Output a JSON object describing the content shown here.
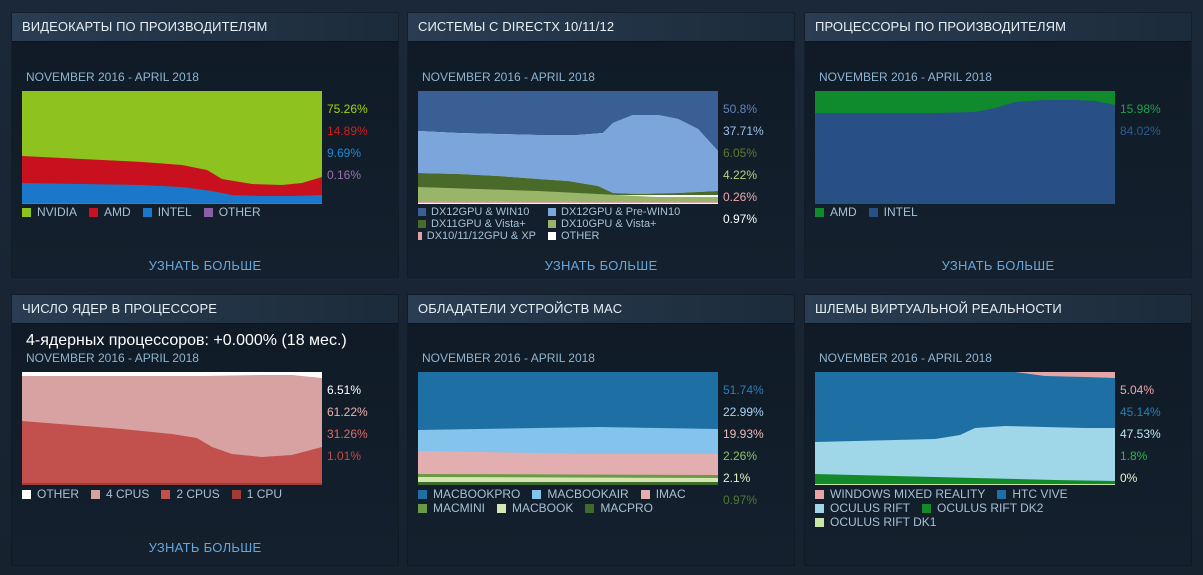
{
  "panels": {
    "gpu": {
      "title": "ВИДЕОКАРТЫ ПО ПРОИЗВОДИТЕЛЯМ",
      "range": "NOVEMBER 2016 - APRIL 2018",
      "values": [
        {
          "text": "75.26%",
          "color": "#a0d40c"
        },
        {
          "text": "14.89%",
          "color": "#d41c1c"
        },
        {
          "text": "9.69%",
          "color": "#1a8adb"
        },
        {
          "text": "0.16%",
          "color": "#9a72b0"
        }
      ],
      "legend": [
        {
          "label": "NVIDIA",
          "color": "#8dc21f"
        },
        {
          "label": "AMD",
          "color": "#c8101e"
        },
        {
          "label": "INTEL",
          "color": "#1a77c9"
        },
        {
          "label": "OTHER",
          "color": "#8a5fa6"
        }
      ],
      "more": "УЗНАТЬ БОЛЬШЕ"
    },
    "directx": {
      "title": "СИСТЕМЫ С DIRECTX 10/11/12",
      "range": "NOVEMBER 2016 - APRIL 2018",
      "values": [
        {
          "text": "50.8%",
          "color": "#5f84b7"
        },
        {
          "text": "37.71%",
          "color": "#9fc0ea"
        },
        {
          "text": "6.05%",
          "color": "#5d7a2c"
        },
        {
          "text": "4.22%",
          "color": "#b8d07a"
        },
        {
          "text": "0.26%",
          "color": "#f0a8a8"
        },
        {
          "text": "0.97%",
          "color": "#ffffff"
        }
      ],
      "legend": [
        {
          "label": "DX12GPU & WIN10",
          "color": "#3a5f94"
        },
        {
          "label": "DX12GPU & Pre-WIN10",
          "color": "#7ca5db"
        },
        {
          "label": "DX11GPU & Vista+",
          "color": "#4a6a2a"
        },
        {
          "label": "DX10GPU & Vista+",
          "color": "#98b56a"
        },
        {
          "label": "DX10/11/12GPU & XP",
          "color": "#e3a3a6"
        },
        {
          "label": "OTHER",
          "color": "#ffffff"
        }
      ],
      "more": "УЗНАТЬ БОЛЬШЕ"
    },
    "cpu": {
      "title": "ПРОЦЕССОРЫ ПО ПРОИЗВОДИТЕЛЯМ",
      "range": "NOVEMBER 2016 - APRIL 2018",
      "values": [
        {
          "text": "15.98%",
          "color": "#1aa34a"
        },
        {
          "text": "84.02%",
          "color": "#2e5a92"
        }
      ],
      "legend": [
        {
          "label": "AMD",
          "color": "#0f8a2d"
        },
        {
          "label": "INTEL",
          "color": "#284f86"
        }
      ],
      "more": "УЗНАТЬ БОЛЬШЕ"
    },
    "cores": {
      "title": "ЧИСЛО ЯДЕР В ПРОЦЕССОРЕ",
      "range": "NOVEMBER 2016 - APRIL 2018",
      "tooltip": "4-ядерных процессоров: +0.000% (18 мес.)",
      "values": [
        {
          "text": "6.51%",
          "color": "#ffffff"
        },
        {
          "text": "61.22%",
          "color": "#f0b0b0"
        },
        {
          "text": "31.26%",
          "color": "#e06a66"
        },
        {
          "text": "1.01%",
          "color": "#c24a44"
        }
      ],
      "legend": [
        {
          "label": "OTHER",
          "color": "#ffffff"
        },
        {
          "label": "4 CPUS",
          "color": "#d8a2a2"
        },
        {
          "label": "2 CPUS",
          "color": "#c2504c"
        },
        {
          "label": "1 CPU",
          "color": "#a23a36"
        }
      ],
      "more": "УЗНАТЬ БОЛЬШЕ"
    },
    "mac": {
      "title": "ОБЛАДАТЕЛИ УСТРОЙСТВ MAC",
      "range": "NOVEMBER 2016 - APRIL 2018",
      "values": [
        {
          "text": "51.74%",
          "color": "#2a7fb5"
        },
        {
          "text": "22.99%",
          "color": "#a9d3f5"
        },
        {
          "text": "19.93%",
          "color": "#f0b8b8"
        },
        {
          "text": "2.26%",
          "color": "#8cc06a"
        },
        {
          "text": "2.1%",
          "color": "#e4f0c0"
        },
        {
          "text": "0.97%",
          "color": "#4f7a34"
        }
      ],
      "legend": [
        {
          "label": "MACBOOKPRO",
          "color": "#1e6fa3"
        },
        {
          "label": "MACBOOKAIR",
          "color": "#84c3ec"
        },
        {
          "label": "IMAC",
          "color": "#e2aeb0"
        },
        {
          "label": "MACMINI",
          "color": "#6a9a45"
        },
        {
          "label": "MACBOOK",
          "color": "#d6e6b0"
        },
        {
          "label": "MACPRO",
          "color": "#3e6a2e"
        }
      ],
      "more": ""
    },
    "vr": {
      "title": "ШЛЕМЫ ВИРТУАЛЬНОЙ РЕАЛЬНОСТИ",
      "range": "NOVEMBER 2016 - APRIL 2018",
      "values": [
        {
          "text": "5.04%",
          "color": "#f0a8a8"
        },
        {
          "text": "45.14%",
          "color": "#2a7fb5"
        },
        {
          "text": "47.53%",
          "color": "#bfe6f2"
        },
        {
          "text": "1.8%",
          "color": "#2fb84a"
        },
        {
          "text": "0%",
          "color": "#e8f5c8"
        }
      ],
      "legend": [
        {
          "label": "WINDOWS MIXED REALITY",
          "color": "#e6a6a8"
        },
        {
          "label": "HTC VIVE",
          "color": "#1e6fa3"
        },
        {
          "label": "OCULUS RIFT",
          "color": "#9fd6e8"
        },
        {
          "label": "OCULUS RIFT DK2",
          "color": "#138a2a"
        },
        {
          "label": "OCULUS RIFT DK1",
          "color": "#c9e6a8"
        }
      ],
      "more": ""
    }
  }
}
